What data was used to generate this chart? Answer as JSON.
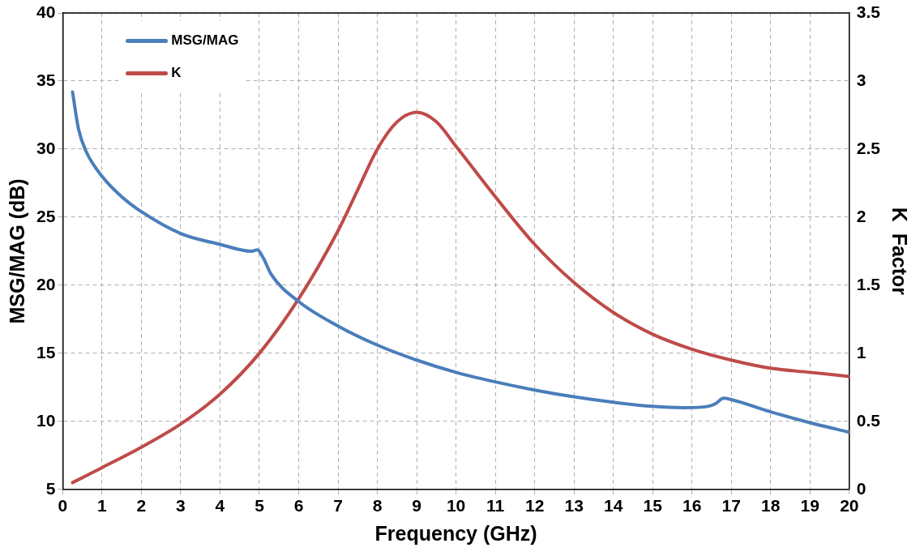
{
  "chart_data": {
    "type": "line",
    "xlabel": "Frequency (GHz)",
    "ylabel": "MSG/MAG (dB)",
    "y2label": "K  Factor",
    "xlim": [
      0,
      20
    ],
    "xticks": [
      0,
      1,
      2,
      3,
      4,
      5,
      6,
      7,
      8,
      9,
      10,
      11,
      12,
      13,
      14,
      15,
      16,
      17,
      18,
      19,
      20
    ],
    "ylim": [
      5,
      40
    ],
    "yticks": [
      5,
      10,
      15,
      20,
      25,
      30,
      35,
      40
    ],
    "y2lim": [
      0,
      3.5
    ],
    "y2ticks": [
      0,
      0.5,
      1,
      1.5,
      2,
      2.5,
      3,
      3.5
    ],
    "grid": true,
    "legend": "top left",
    "marker": "none",
    "line_style": "solid",
    "series": [
      {
        "name": "MSG/MAG",
        "color": "#4a7ebb",
        "x": [
          0.25,
          0.4,
          0.6,
          1,
          1.5,
          2,
          3,
          4,
          4.8,
          4.95,
          5.1,
          5.3,
          6,
          7,
          8,
          9,
          10,
          11,
          12,
          13,
          14,
          15,
          15.8,
          16.4,
          16.6,
          16.8,
          17,
          18,
          19,
          20
        ],
        "values": [
          34.2,
          31.5,
          29.8,
          28.0,
          26.5,
          25.4,
          23.8,
          23.0,
          22.5,
          22.6,
          22.0,
          20.8,
          18.8,
          17.0,
          15.6,
          14.5,
          13.6,
          12.9,
          12.3,
          11.8,
          11.4,
          11.1,
          11.0,
          11.1,
          11.3,
          11.7,
          11.6,
          10.7,
          9.9,
          9.2
        ]
      },
      {
        "name": "K",
        "color": "#be4b48",
        "axis": "y2",
        "x": [
          0.25,
          1,
          2,
          3,
          4,
          5,
          6,
          7,
          7.5,
          8,
          8.5,
          9,
          9.5,
          10,
          11,
          12,
          13,
          14,
          15,
          16,
          17,
          18,
          19,
          20
        ],
        "values": [
          0.05,
          0.16,
          0.31,
          0.48,
          0.7,
          1.0,
          1.4,
          1.9,
          2.2,
          2.5,
          2.7,
          2.77,
          2.7,
          2.52,
          2.15,
          1.8,
          1.52,
          1.3,
          1.14,
          1.03,
          0.95,
          0.89,
          0.86,
          0.83
        ]
      }
    ]
  }
}
